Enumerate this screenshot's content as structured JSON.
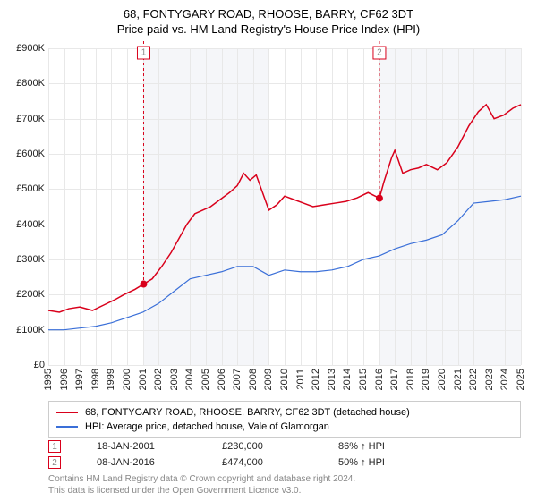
{
  "title": "68, FONTYGARY ROAD, RHOOSE, BARRY, CF62 3DT",
  "subtitle": "Price paid vs. HM Land Registry's House Price Index (HPI)",
  "chart": {
    "type": "line",
    "background_color": "#ffffff",
    "grid_color": "#e8e8e8",
    "x": {
      "min": 1995,
      "max": 2025,
      "tick_step": 1,
      "labels": [
        "1995",
        "1996",
        "1997",
        "1998",
        "1999",
        "2000",
        "2001",
        "2002",
        "2003",
        "2004",
        "2005",
        "2006",
        "2007",
        "2008",
        "2009",
        "2010",
        "2011",
        "2012",
        "2013",
        "2014",
        "2015",
        "2016",
        "2017",
        "2018",
        "2019",
        "2020",
        "2021",
        "2022",
        "2023",
        "2024",
        "2025"
      ],
      "fontsize": 11
    },
    "y": {
      "min": 0,
      "max": 900000,
      "tick_step": 100000,
      "labels": [
        "£0",
        "£100K",
        "£200K",
        "£300K",
        "£400K",
        "£500K",
        "£600K",
        "£700K",
        "£800K",
        "£900K"
      ],
      "fontsize": 11
    },
    "shaded_years": [
      2001,
      2002,
      2003,
      2004,
      2005,
      2006,
      2007,
      2008,
      2016,
      2017,
      2018,
      2019,
      2020,
      2021,
      2022,
      2023,
      2024,
      2025
    ],
    "series": [
      {
        "id": "property",
        "label": "68, FONTYGARY ROAD, RHOOSE, BARRY, CF62 3DT (detached house)",
        "color": "#d9001b",
        "line_width": 1.5,
        "points": [
          [
            1995.0,
            155000
          ],
          [
            1995.7,
            150000
          ],
          [
            1996.3,
            160000
          ],
          [
            1997.0,
            165000
          ],
          [
            1997.8,
            155000
          ],
          [
            1998.5,
            170000
          ],
          [
            1999.2,
            185000
          ],
          [
            1999.8,
            200000
          ],
          [
            2000.5,
            215000
          ],
          [
            2001.05,
            230000
          ],
          [
            2001.6,
            245000
          ],
          [
            2002.2,
            280000
          ],
          [
            2002.8,
            320000
          ],
          [
            2003.3,
            360000
          ],
          [
            2003.8,
            400000
          ],
          [
            2004.3,
            430000
          ],
          [
            2004.8,
            440000
          ],
          [
            2005.3,
            450000
          ],
          [
            2005.9,
            470000
          ],
          [
            2006.5,
            490000
          ],
          [
            2007.0,
            510000
          ],
          [
            2007.4,
            545000
          ],
          [
            2007.8,
            525000
          ],
          [
            2008.2,
            540000
          ],
          [
            2008.6,
            490000
          ],
          [
            2009.0,
            440000
          ],
          [
            2009.5,
            455000
          ],
          [
            2010.0,
            480000
          ],
          [
            2010.6,
            470000
          ],
          [
            2011.2,
            460000
          ],
          [
            2011.8,
            450000
          ],
          [
            2012.5,
            455000
          ],
          [
            2013.2,
            460000
          ],
          [
            2013.9,
            465000
          ],
          [
            2014.6,
            475000
          ],
          [
            2015.3,
            490000
          ],
          [
            2016.02,
            474000
          ],
          [
            2016.3,
            520000
          ],
          [
            2016.8,
            590000
          ],
          [
            2017.0,
            610000
          ],
          [
            2017.5,
            545000
          ],
          [
            2018.0,
            555000
          ],
          [
            2018.5,
            560000
          ],
          [
            2019.0,
            570000
          ],
          [
            2019.7,
            555000
          ],
          [
            2020.3,
            575000
          ],
          [
            2021.0,
            620000
          ],
          [
            2021.7,
            680000
          ],
          [
            2022.3,
            720000
          ],
          [
            2022.8,
            740000
          ],
          [
            2023.3,
            700000
          ],
          [
            2023.9,
            710000
          ],
          [
            2024.5,
            730000
          ],
          [
            2025.0,
            740000
          ]
        ]
      },
      {
        "id": "hpi",
        "label": "HPI: Average price, detached house, Vale of Glamorgan",
        "color": "#3a6fd8",
        "line_width": 1.2,
        "points": [
          [
            1995.0,
            100000
          ],
          [
            1996.0,
            100000
          ],
          [
            1997.0,
            105000
          ],
          [
            1998.0,
            110000
          ],
          [
            1999.0,
            120000
          ],
          [
            2000.0,
            135000
          ],
          [
            2001.0,
            150000
          ],
          [
            2002.0,
            175000
          ],
          [
            2003.0,
            210000
          ],
          [
            2004.0,
            245000
          ],
          [
            2005.0,
            255000
          ],
          [
            2006.0,
            265000
          ],
          [
            2007.0,
            280000
          ],
          [
            2008.0,
            280000
          ],
          [
            2009.0,
            255000
          ],
          [
            2010.0,
            270000
          ],
          [
            2011.0,
            265000
          ],
          [
            2012.0,
            265000
          ],
          [
            2013.0,
            270000
          ],
          [
            2014.0,
            280000
          ],
          [
            2015.0,
            300000
          ],
          [
            2016.0,
            310000
          ],
          [
            2017.0,
            330000
          ],
          [
            2018.0,
            345000
          ],
          [
            2019.0,
            355000
          ],
          [
            2020.0,
            370000
          ],
          [
            2021.0,
            410000
          ],
          [
            2022.0,
            460000
          ],
          [
            2023.0,
            465000
          ],
          [
            2024.0,
            470000
          ],
          [
            2025.0,
            480000
          ]
        ]
      }
    ],
    "markers": [
      {
        "n": "1",
        "x": 2001.05,
        "y": 230000
      },
      {
        "n": "2",
        "x": 2016.02,
        "y": 474000
      }
    ]
  },
  "legend": {
    "border_color": "#cccccc",
    "items": [
      {
        "color": "#d9001b",
        "text": "68, FONTYGARY ROAD, RHOOSE, BARRY, CF62 3DT (detached house)"
      },
      {
        "color": "#3a6fd8",
        "text": "HPI: Average price, detached house, Vale of Glamorgan"
      }
    ]
  },
  "events": [
    {
      "n": "1",
      "date": "18-JAN-2001",
      "price": "£230,000",
      "pct": "86% ↑ HPI"
    },
    {
      "n": "2",
      "date": "08-JAN-2016",
      "price": "£474,000",
      "pct": "50% ↑ HPI"
    }
  ],
  "attribution": {
    "line1": "Contains HM Land Registry data © Crown copyright and database right 2024.",
    "line2": "This data is licensed under the Open Government Licence v3.0."
  }
}
